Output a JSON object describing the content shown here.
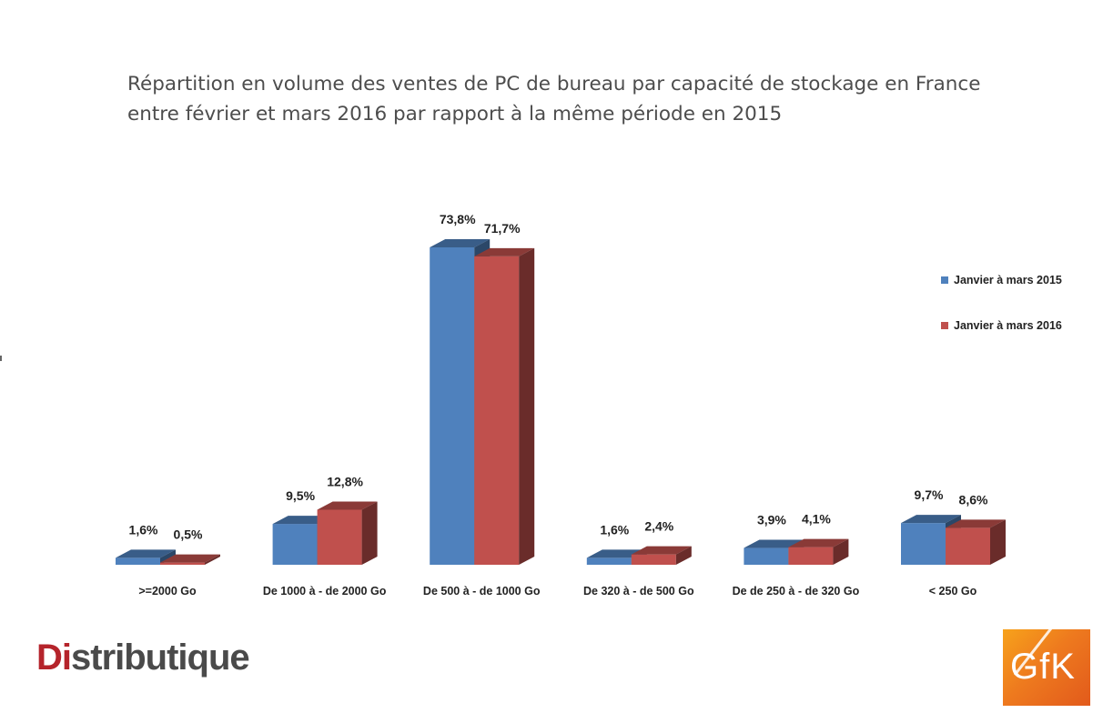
{
  "chart_data": {
    "type": "bar",
    "title_lines": [
      "Répartition en volume des ventes de PC de bureau par capacité de stockage en France",
      "entre février et mars 2016 par rapport à la même période en 2015"
    ],
    "categories": [
      ">=2000 Go",
      "De 1000 à - de 2000 Go",
      "De 500 à - de 1000 Go",
      "De 320 à - de 500 Go",
      "De de 250 à - de 320 Go",
      "< 250 Go"
    ],
    "series": [
      {
        "name": "Janvier à mars 2015",
        "values": [
          1.6,
          9.5,
          73.8,
          1.6,
          3.9,
          9.7
        ],
        "labels": [
          "1,6%",
          "9,5%",
          "73,8%",
          "1,6%",
          "3,9%",
          "9,7%"
        ],
        "color": "#4f81bd"
      },
      {
        "name": "Janvier à mars 2016",
        "values": [
          0.5,
          12.8,
          71.7,
          2.4,
          4.1,
          8.6
        ],
        "labels": [
          "0,5%",
          "12,8%",
          "71,7%",
          "2,4%",
          "4,1%",
          "8,6%"
        ],
        "color": "#c0504d"
      }
    ],
    "unit": "%",
    "ylim": [
      0,
      73.8
    ],
    "grid": false,
    "legend_position": "right",
    "style": "3d-clustered-column"
  },
  "logos": {
    "distributique": {
      "prefix": "Di",
      "rest": "stributique"
    },
    "gfk": "GfK"
  }
}
